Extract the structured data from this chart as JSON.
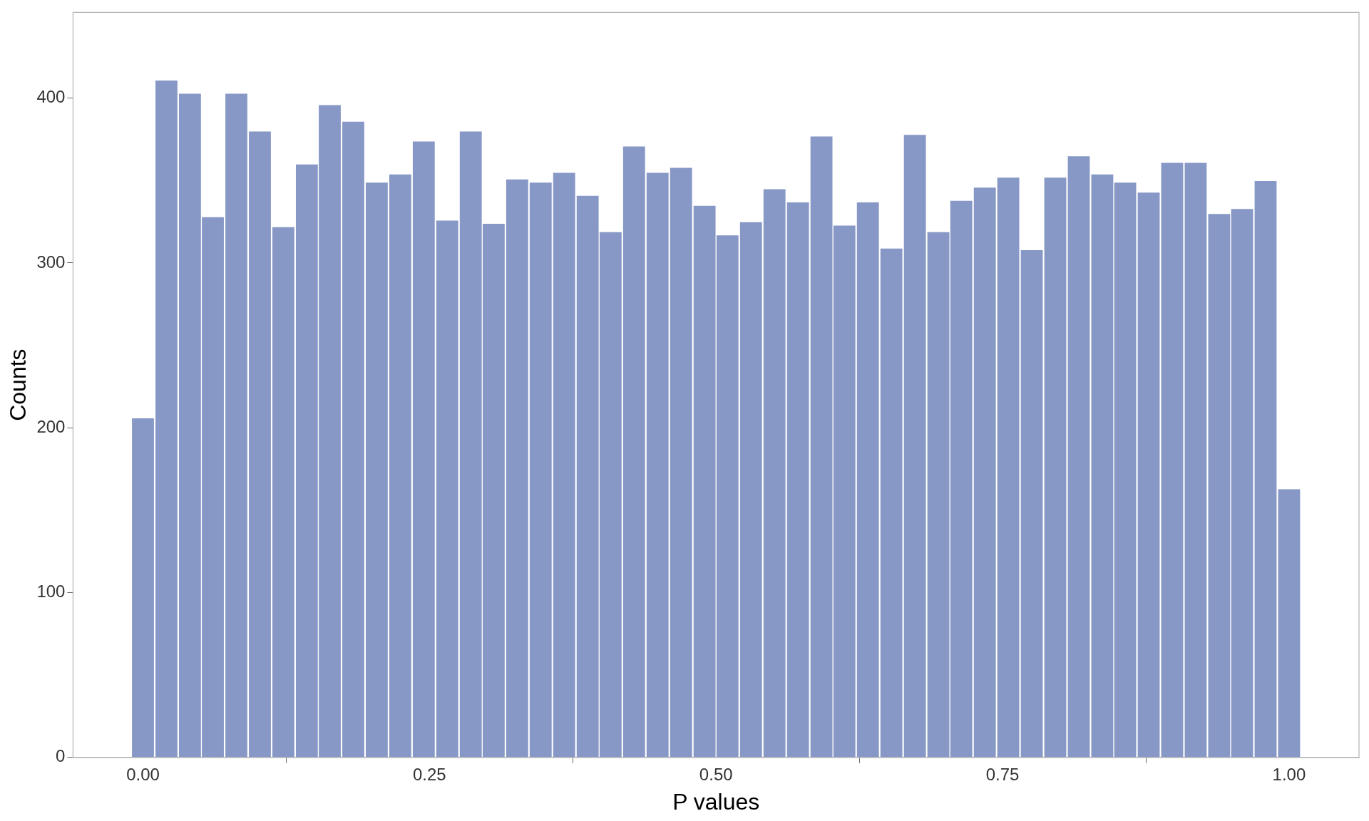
{
  "chart_data": {
    "type": "histogram",
    "xlabel": "P values",
    "ylabel": "Counts",
    "color": "#8798c6",
    "bins": [
      -0.01,
      0.01,
      0.031,
      0.051,
      0.071,
      0.092,
      0.112,
      0.133,
      0.153,
      0.173,
      0.194,
      0.214,
      0.235,
      0.255,
      0.276,
      0.296,
      0.316,
      0.337,
      0.357,
      0.378,
      0.398,
      0.418,
      0.439,
      0.459,
      0.48,
      0.5,
      0.52,
      0.541,
      0.561,
      0.582,
      0.602,
      0.622,
      0.643,
      0.663,
      0.684,
      0.704,
      0.724,
      0.745,
      0.765,
      0.786,
      0.806,
      0.827,
      0.847,
      0.867,
      0.888,
      0.908,
      0.929,
      0.949,
      0.969,
      0.99,
      1.01
    ],
    "values": [
      206,
      411,
      403,
      328,
      403,
      380,
      322,
      360,
      396,
      386,
      349,
      354,
      374,
      326,
      380,
      324,
      351,
      349,
      355,
      341,
      319,
      371,
      355,
      358,
      335,
      317,
      325,
      345,
      337,
      377,
      323,
      337,
      309,
      378,
      319,
      338,
      346,
      352,
      308,
      352,
      365,
      354,
      349,
      343,
      361,
      361,
      330,
      333,
      350,
      163
    ],
    "xlim": [
      -0.061,
      1.061
    ],
    "ylim": [
      0,
      452
    ],
    "xticks": [
      {
        "value": 0,
        "label": "0.00"
      },
      {
        "value": 0.25,
        "label": "0.25"
      },
      {
        "value": 0.5,
        "label": "0.50"
      },
      {
        "value": 0.75,
        "label": "0.75"
      },
      {
        "value": 1,
        "label": "1.00"
      }
    ],
    "yticks": [
      0,
      100,
      200,
      300,
      400
    ],
    "grid": false,
    "legend": false
  }
}
